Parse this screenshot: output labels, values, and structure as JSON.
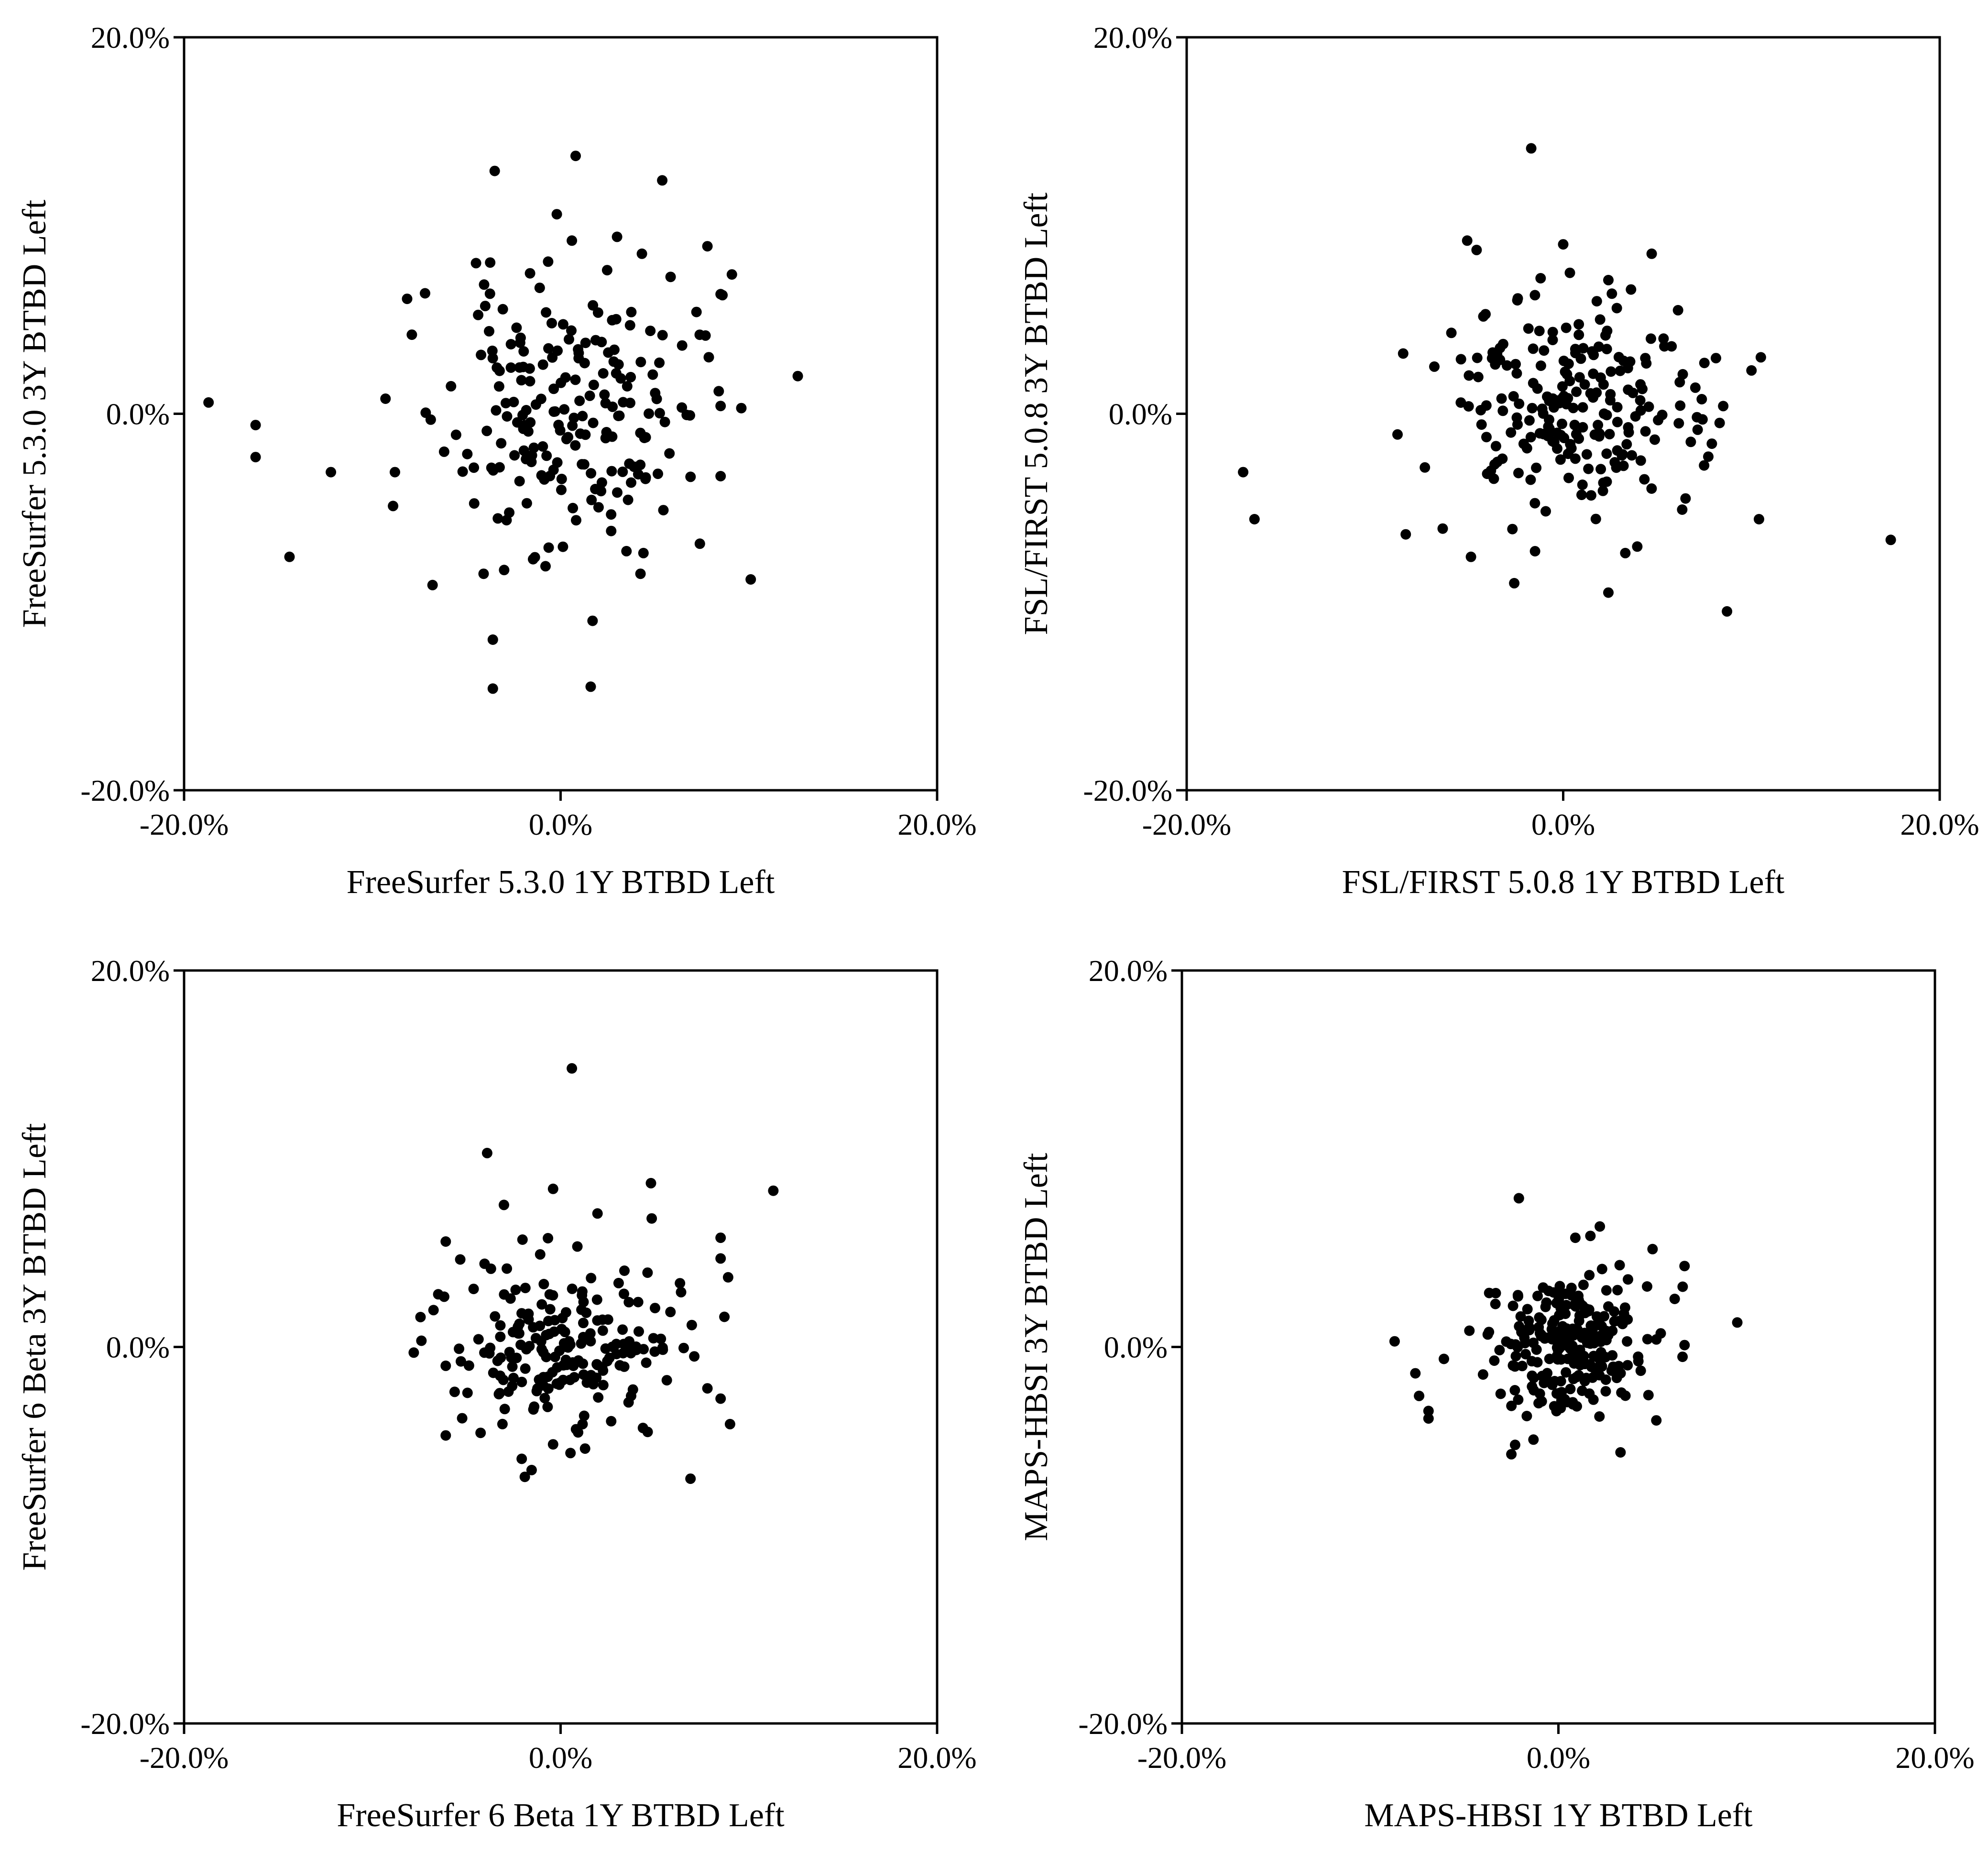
{
  "chart_data": [
    {
      "type": "scatter",
      "xlabel": "FreeSurfer 5.3.0 1Y BTBD Left",
      "ylabel": "FreeSurfer 5.3.0 3Y BTBD Left",
      "xlim": [
        -20,
        20
      ],
      "ylim": [
        -20,
        20
      ],
      "x_ticks": [
        "-20.0%",
        "0.0%",
        "20.0%"
      ],
      "y_ticks": [
        "-20.0%",
        "0.0%",
        "20.0%"
      ],
      "points_generator": {
        "n": 200,
        "sx": 3.2,
        "sy": 3.5,
        "seed": 11
      },
      "points": [
        [
          -18.7,
          0.6
        ],
        [
          -16.2,
          -0.6
        ],
        [
          -16.2,
          -2.3
        ],
        [
          -12.2,
          -3.1
        ],
        [
          -14.4,
          -7.6
        ],
        [
          -9.3,
          0.8
        ],
        [
          -8.8,
          -3.1
        ],
        [
          -8.9,
          -4.9
        ],
        [
          -7.9,
          4.2
        ],
        [
          -7.2,
          6.4
        ],
        [
          -6.8,
          -9.1
        ],
        [
          -3.5,
          12.9
        ],
        [
          0.8,
          13.7
        ],
        [
          5.4,
          12.4
        ],
        [
          -0.2,
          10.6
        ],
        [
          0.6,
          9.2
        ],
        [
          3.0,
          9.4
        ],
        [
          7.8,
          8.9
        ],
        [
          9.1,
          7.4
        ],
        [
          8.6,
          6.3
        ],
        [
          12.6,
          2.0
        ],
        [
          8.4,
          1.2
        ],
        [
          9.6,
          0.3
        ],
        [
          10.1,
          -8.8
        ],
        [
          -3.6,
          -12.0
        ],
        [
          -3.6,
          -14.6
        ],
        [
          1.6,
          -14.5
        ],
        [
          1.7,
          -11.0
        ],
        [
          3.5,
          -7.3
        ],
        [
          4.4,
          -7.4
        ],
        [
          -3.0,
          -8.3
        ],
        [
          -0.8,
          -8.1
        ]
      ]
    },
    {
      "type": "scatter",
      "xlabel": "FSL/FIRST 5.0.8 1Y BTBD Left",
      "ylabel": "FSL/FIRST 5.0.8 3Y BTBD Left",
      "xlim": [
        -20,
        20
      ],
      "ylim": [
        -20,
        20
      ],
      "x_ticks": [
        "-20.0%",
        "0.0%",
        "20.0%"
      ],
      "y_ticks": [
        "-20.0%",
        "0.0%",
        "20.0%"
      ],
      "points_generator": {
        "n": 210,
        "sx": 3.4,
        "sy": 2.9,
        "seed": 23
      },
      "points": [
        [
          -17.0,
          -3.1
        ],
        [
          -16.4,
          -5.6
        ],
        [
          -8.8,
          -1.1
        ],
        [
          -8.5,
          3.2
        ],
        [
          -6.4,
          -6.1
        ],
        [
          -5.1,
          9.2
        ],
        [
          -4.6,
          8.7
        ],
        [
          -1.7,
          14.1
        ],
        [
          0.0,
          9.0
        ],
        [
          -1.2,
          7.2
        ],
        [
          -1.5,
          6.3
        ],
        [
          2.4,
          7.1
        ],
        [
          3.6,
          6.6
        ],
        [
          6.1,
          5.5
        ],
        [
          7.5,
          2.7
        ],
        [
          10.0,
          2.3
        ],
        [
          10.5,
          3.0
        ],
        [
          10.4,
          -5.6
        ],
        [
          17.4,
          -6.7
        ],
        [
          8.7,
          -10.5
        ],
        [
          2.4,
          -9.5
        ],
        [
          -2.6,
          -9.0
        ],
        [
          3.3,
          -7.4
        ],
        [
          -4.9,
          -7.6
        ],
        [
          6.5,
          -4.5
        ],
        [
          7.4,
          -0.3
        ]
      ]
    },
    {
      "type": "scatter",
      "xlabel": "FreeSurfer 6 Beta 1Y BTBD Left",
      "ylabel": "FreeSurfer 6 Beta 3Y BTBD Left",
      "xlim": [
        -20,
        20
      ],
      "ylim": [
        -20,
        20
      ],
      "x_ticks": [
        "-20.0%",
        "0.0%",
        "20.0%"
      ],
      "y_ticks": [
        "-20.0%",
        "0.0%",
        "20.0%"
      ],
      "points_generator": {
        "n": 200,
        "sx": 2.9,
        "sy": 2.4,
        "seed": 37
      },
      "points": [
        [
          0.6,
          14.8
        ],
        [
          -3.9,
          10.3
        ],
        [
          -0.4,
          8.4
        ],
        [
          4.8,
          8.7
        ],
        [
          11.3,
          8.3
        ],
        [
          -6.1,
          5.6
        ],
        [
          -6.5,
          2.8
        ],
        [
          8.5,
          5.8
        ],
        [
          8.5,
          4.7
        ],
        [
          8.9,
          3.7
        ],
        [
          8.7,
          1.6
        ],
        [
          7.1,
          -0.5
        ],
        [
          7.8,
          -2.2
        ],
        [
          9.0,
          -4.1
        ],
        [
          6.9,
          -7.0
        ],
        [
          -7.8,
          -0.3
        ],
        [
          -6.1,
          -1.0
        ],
        [
          -6.1,
          -4.7
        ],
        [
          -1.9,
          -6.9
        ],
        [
          1.3,
          -5.4
        ]
      ]
    },
    {
      "type": "scatter",
      "xlabel": "MAPS-HBSI 1Y BTBD Left",
      "ylabel": "MAPS-HBSI 3Y BTBD Left",
      "xlim": [
        -20,
        20
      ],
      "ylim": [
        -20,
        20
      ],
      "x_ticks": [
        "-20.0%",
        "0.0%",
        "20.0%"
      ],
      "y_ticks": [
        "-20.0%",
        "0.0%",
        "20.0%"
      ],
      "points_generator": {
        "n": 230,
        "sx": 1.9,
        "sy": 1.75,
        "seed": 53
      },
      "points": [
        [
          -8.7,
          0.3
        ],
        [
          -7.6,
          -1.4
        ],
        [
          -7.4,
          -2.6
        ],
        [
          -6.9,
          -3.4
        ],
        [
          -6.9,
          -3.8
        ],
        [
          -2.1,
          7.9
        ],
        [
          0.9,
          5.8
        ],
        [
          1.7,
          5.9
        ],
        [
          2.2,
          6.4
        ],
        [
          5.0,
          5.2
        ],
        [
          6.7,
          4.3
        ],
        [
          6.6,
          3.2
        ],
        [
          9.5,
          1.3
        ],
        [
          5.2,
          0.4
        ],
        [
          6.7,
          0.1
        ],
        [
          5.2,
          -3.9
        ],
        [
          3.3,
          -5.6
        ],
        [
          -2.5,
          -5.7
        ],
        [
          -2.3,
          -5.2
        ]
      ]
    }
  ]
}
